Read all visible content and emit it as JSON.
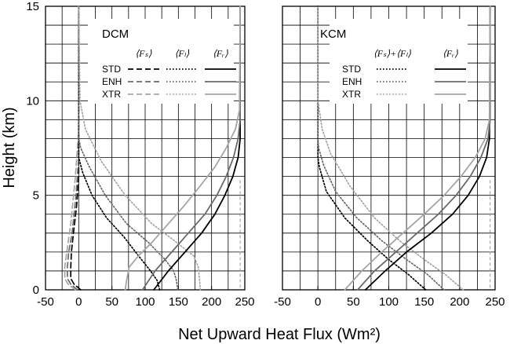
{
  "figure": {
    "xlabel": "Net Upward Heat Flux (Wm²)",
    "ylabel": "Height (km)"
  },
  "colors": {
    "STD": "#000000",
    "ENH": "#6a6a6a",
    "XTR": "#a5a5a5"
  },
  "chart_data": [
    {
      "type": "line",
      "title": "DCM",
      "xlabel": "Net Upward Heat Flux (Wm²)",
      "ylabel": "Height (km)",
      "xlim": [
        -50,
        250
      ],
      "ylim": [
        0,
        15
      ],
      "xticks": [
        "-50",
        "0",
        "50",
        "100",
        "150",
        "200",
        "250"
      ],
      "yticks": [
        "0",
        "5",
        "10",
        "15"
      ],
      "grid": true,
      "legend": {
        "placement": "top",
        "columns": [
          "⟨Fₛ⟩",
          "⟨Fₗ⟩",
          "⟨Fᵣ⟩"
        ],
        "rows": [
          "STD",
          "ENH",
          "XTR"
        ]
      },
      "series": [
        {
          "name": "STD",
          "quantity": "Fs",
          "style": "dash",
          "x": [
            3,
            -7,
            -12,
            -12,
            -11,
            -8,
            -3,
            0,
            0,
            0
          ],
          "y": [
            0,
            0.3,
            0.6,
            1.2,
            2,
            3,
            4.5,
            6,
            6.5,
            15
          ]
        },
        {
          "name": "ENH",
          "quantity": "Fs",
          "style": "dash",
          "x": [
            -2,
            -12,
            -17,
            -17,
            -15,
            -10,
            -4,
            0,
            0,
            0
          ],
          "y": [
            0,
            0.3,
            0.6,
            1.2,
            2,
            3,
            5,
            7,
            7.5,
            15
          ]
        },
        {
          "name": "XTR",
          "quantity": "Fs",
          "style": "dash",
          "x": [
            -5,
            -16,
            -21,
            -21,
            -18,
            -12,
            -5,
            0,
            0,
            0
          ],
          "y": [
            0,
            0.3,
            0.6,
            1.2,
            2,
            3.5,
            6,
            8.5,
            9,
            15
          ]
        },
        {
          "name": "STD",
          "quantity": "FL",
          "style": "dot",
          "x": [
            122,
            118,
            108,
            90,
            68,
            42,
            20,
            6,
            0,
            0
          ],
          "y": [
            0,
            0.5,
            1,
            1.8,
            2.8,
            3.8,
            5,
            6.2,
            7,
            15
          ]
        },
        {
          "name": "ENH",
          "quantity": "FL",
          "style": "dot",
          "x": [
            149,
            147,
            143,
            130,
            105,
            72,
            40,
            16,
            3,
            0,
            0
          ],
          "y": [
            0,
            0.5,
            1,
            1.6,
            2.5,
            3.5,
            5,
            6.5,
            7.5,
            8,
            15
          ]
        },
        {
          "name": "XTR",
          "quantity": "FL",
          "style": "dot",
          "x": [
            183,
            182,
            180,
            173,
            140,
            110,
            70,
            34,
            10,
            2,
            0
          ],
          "y": [
            0,
            0.5,
            1.2,
            1.8,
            2.7,
            3.5,
            5,
            6.8,
            8.5,
            10,
            15
          ]
        },
        {
          "name": "STD",
          "quantity": "FR",
          "style": "solid",
          "x": [
            113,
            135,
            160,
            185,
            205,
            220,
            232,
            240,
            243,
            243
          ],
          "y": [
            0,
            1,
            2,
            3,
            4,
            5,
            6,
            7,
            8,
            15
          ]
        },
        {
          "name": "ENH",
          "quantity": "FR",
          "style": "solid",
          "x": [
            96,
            115,
            140,
            165,
            190,
            208,
            222,
            233,
            240,
            243,
            243
          ],
          "y": [
            0,
            1,
            2,
            3,
            4,
            5,
            6,
            7,
            8,
            9,
            15
          ]
        },
        {
          "name": "XTR",
          "quantity": "FR",
          "style": "solid",
          "x": [
            70,
            72,
            76,
            90,
            110,
            135,
            160,
            183,
            205,
            222,
            236,
            242,
            243
          ],
          "y": [
            0,
            0.5,
            1.2,
            1.8,
            2.5,
            3.5,
            4.5,
            5.5,
            6.5,
            7.5,
            8.5,
            9.5,
            15
          ]
        }
      ]
    },
    {
      "type": "line",
      "title": "KCM",
      "xlabel": "Net Upward Heat Flux (Wm²)",
      "ylabel": "",
      "xlim": [
        -50,
        250
      ],
      "ylim": [
        0,
        15
      ],
      "xticks": [
        "-50",
        "0",
        "50",
        "100",
        "150",
        "200",
        "250"
      ],
      "yticks": [],
      "grid": true,
      "legend": {
        "placement": "top",
        "columns": [
          "⟨Fₛ⟩+⟨Fₗ⟩",
          "⟨Fᵣ⟩"
        ],
        "rows": [
          "STD",
          "ENH",
          "XTR"
        ]
      },
      "series": [
        {
          "name": "STD",
          "quantity": "Fs+FL",
          "style": "dot",
          "x": [
            152,
            128,
            100,
            70,
            38,
            12,
            2,
            0,
            0
          ],
          "y": [
            0,
            0.8,
            1.6,
            2.6,
            3.8,
            5.2,
            6.5,
            7,
            15
          ]
        },
        {
          "name": "ENH",
          "quantity": "Fs+FL",
          "style": "dot",
          "x": [
            178,
            155,
            125,
            90,
            55,
            25,
            8,
            1,
            0,
            0
          ],
          "y": [
            0,
            0.8,
            1.6,
            2.6,
            3.8,
            5.2,
            6.6,
            7.5,
            8,
            15
          ]
        },
        {
          "name": "XTR",
          "quantity": "Fs+FL",
          "style": "dot",
          "x": [
            205,
            180,
            150,
            115,
            80,
            45,
            18,
            6,
            0,
            0
          ],
          "y": [
            0,
            0.8,
            1.6,
            2.6,
            3.8,
            5.5,
            7.2,
            8.5,
            10,
            15
          ]
        },
        {
          "name": "STD",
          "quantity": "FR",
          "style": "solid",
          "x": [
            67,
            95,
            125,
            160,
            190,
            212,
            228,
            238,
            242,
            243
          ],
          "y": [
            0,
            1,
            2,
            3,
            4,
            5,
            6,
            7,
            8,
            15
          ]
        },
        {
          "name": "ENH",
          "quantity": "FR",
          "style": "solid",
          "x": [
            56,
            80,
            110,
            140,
            170,
            195,
            215,
            230,
            240,
            243,
            243
          ],
          "y": [
            0,
            1,
            2,
            3,
            4,
            5,
            6,
            7,
            8,
            9,
            15
          ]
        },
        {
          "name": "XTR",
          "quantity": "FR",
          "style": "solid",
          "x": [
            38,
            62,
            90,
            120,
            150,
            178,
            202,
            222,
            236,
            242,
            243
          ],
          "y": [
            0,
            1,
            2,
            3,
            4,
            5,
            6,
            7,
            8,
            9,
            15
          ]
        }
      ]
    }
  ]
}
